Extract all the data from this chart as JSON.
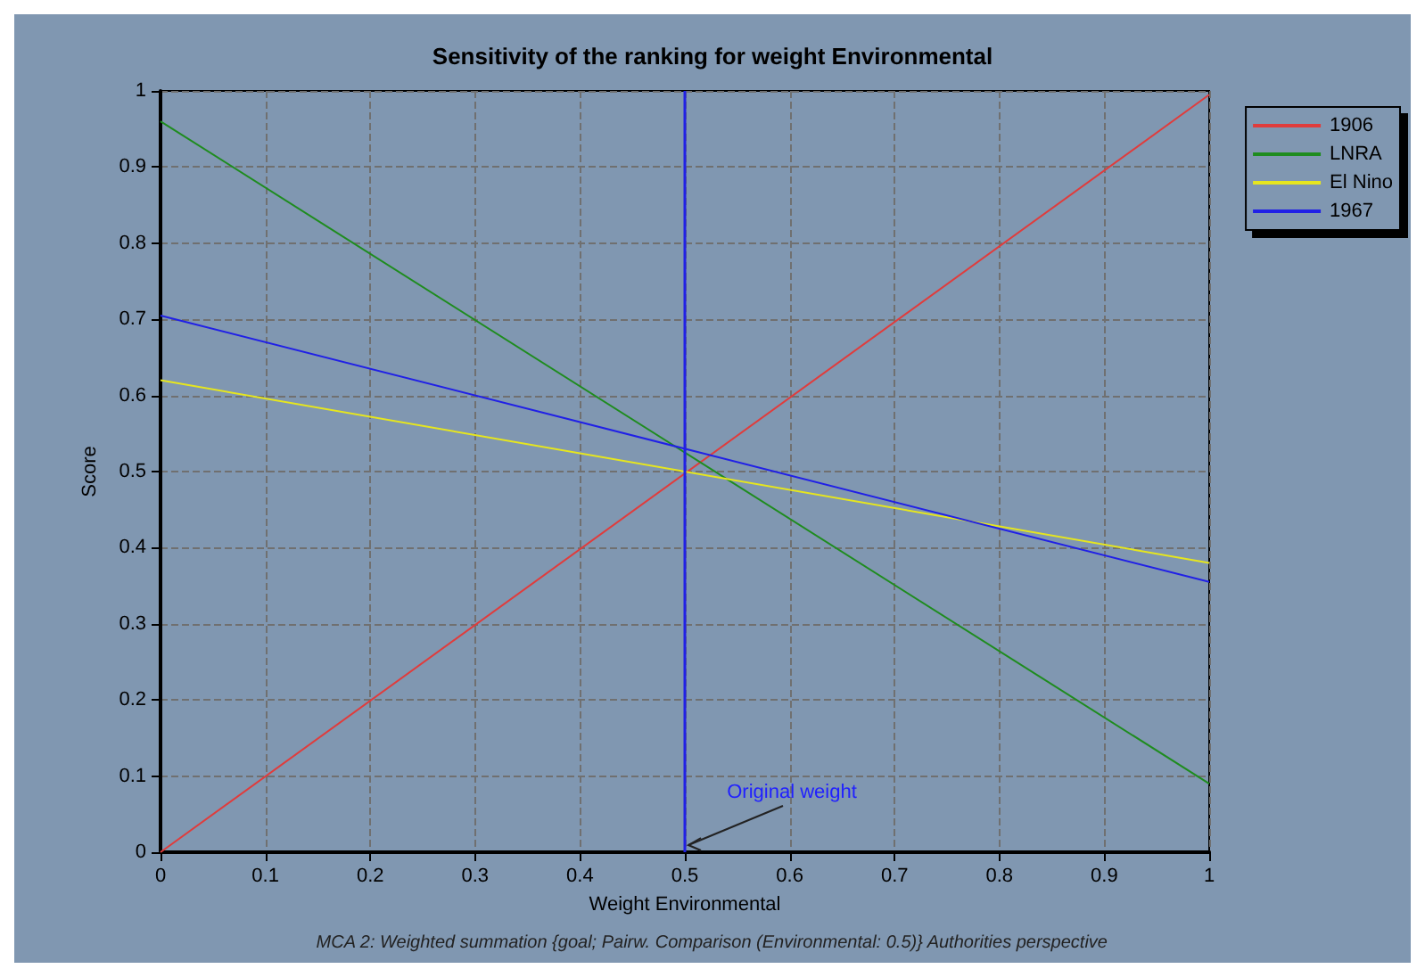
{
  "chart_data": {
    "type": "line",
    "title": "Sensitivity of the ranking for weight Environmental",
    "xlabel": "Weight Environmental",
    "ylabel": "Score",
    "x": [
      0,
      1
    ],
    "series": [
      {
        "name": "1906",
        "color": "#e03c3c",
        "values": [
          0,
          0.995
        ]
      },
      {
        "name": "LNRA",
        "color": "#1e8c1e",
        "values": [
          0.96,
          0.09
        ]
      },
      {
        "name": "El Nino",
        "color": "#e6e61e",
        "values": [
          0.62,
          0.38
        ]
      },
      {
        "name": "1967",
        "color": "#2020e6",
        "values": [
          0.705,
          0.355
        ]
      }
    ],
    "xlim": [
      0,
      1
    ],
    "xticks": [
      0,
      0.1,
      0.2,
      0.3,
      0.4,
      0.5,
      0.6,
      0.7,
      0.8,
      0.9,
      1
    ],
    "ylim": [
      0,
      1
    ],
    "yticks": [
      0,
      0.1,
      0.2,
      0.3,
      0.4,
      0.5,
      0.6,
      0.7,
      0.8,
      0.9,
      1
    ],
    "ref_lines": [
      {
        "axis": "x",
        "value": 0.5,
        "color": "#2020e6"
      }
    ],
    "annotations": [
      {
        "text": "Original weight",
        "x": 0.5,
        "y": 0
      },
      "MCA 2: Weighted summation {goal; Pairw. Comparison (Environmental: 0.5)} Authorities perspective"
    ],
    "grid": true,
    "legend": "top right",
    "marker": "none",
    "line_style": "solid"
  }
}
